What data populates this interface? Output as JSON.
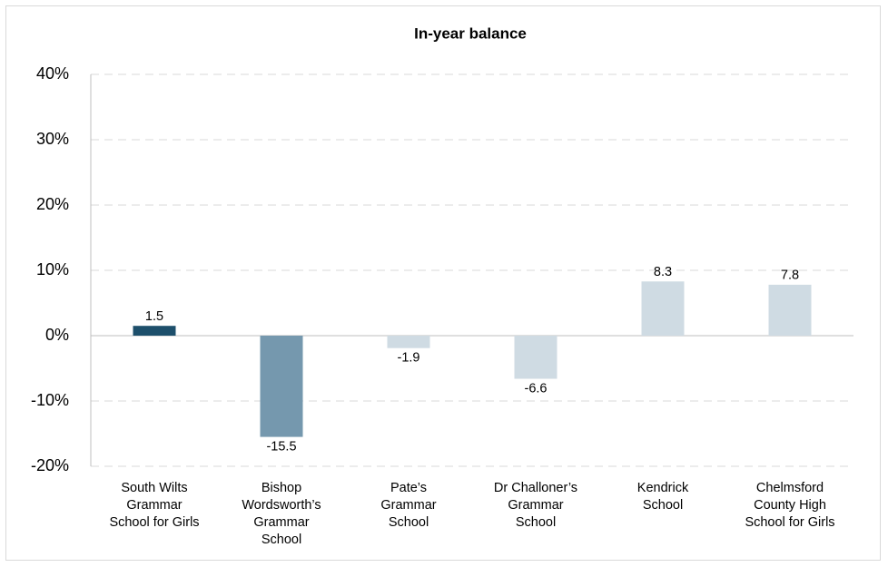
{
  "chart_data": {
    "type": "bar",
    "title": "In-year balance",
    "categories": [
      "South Wilts\nGrammar\nSchool for Girls",
      "Bishop\nWordsworth’s\nGrammar\nSchool",
      "Pate’s\nGrammar\nSchool",
      "Dr Challoner’s\nGrammar\nSchool",
      "Kendrick\nSchool",
      "Chelmsford\nCounty High\nSchool for Girls"
    ],
    "values": [
      1.5,
      -15.5,
      -1.9,
      -6.6,
      8.3,
      7.8
    ],
    "colors": [
      "#1d4f6b",
      "#7598ae",
      "#cfdbe3",
      "#cfdbe3",
      "#cfdbe3",
      "#cfdbe3"
    ],
    "ylim": [
      -20,
      40
    ],
    "yticks": [
      {
        "value": -20,
        "label": "-20%"
      },
      {
        "value": -10,
        "label": "-10%"
      },
      {
        "value": 0,
        "label": "0%"
      },
      {
        "value": 10,
        "label": "10%"
      },
      {
        "value": 20,
        "label": "20%"
      },
      {
        "value": 30,
        "label": "30%"
      },
      {
        "value": 40,
        "label": "40%"
      }
    ],
    "grid": true
  }
}
